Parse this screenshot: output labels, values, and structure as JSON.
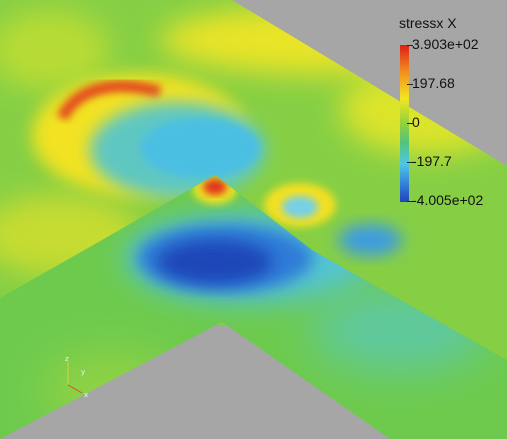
{
  "legend": {
    "title": "stressx X",
    "max_label": "3.903e+02",
    "upper_label": "197.68",
    "mid_label": "0",
    "lower_label": "-197.7",
    "min_label": "-4.005e+02"
  },
  "axes": {
    "z_label": "z",
    "y_label": "y",
    "x_label": "x"
  },
  "colors": {
    "background": "#a6a6a6",
    "field_green": "#7ccd4a",
    "compressive_blue": "#1d55c8",
    "tensile_red": "#e0311b",
    "neutral_yellow": "#f3e524",
    "light_cyan": "#58c8e8"
  }
}
